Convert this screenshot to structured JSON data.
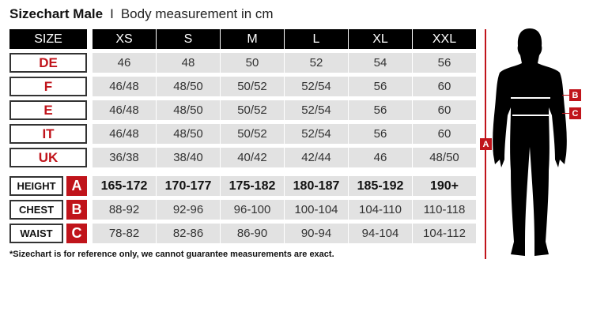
{
  "title": {
    "bold": "Sizechart Male",
    "separator": "I",
    "subtitle": "Body measurement in cm"
  },
  "header": {
    "size_label": "SIZE",
    "sizes": [
      "XS",
      "S",
      "M",
      "L",
      "XL",
      "XXL"
    ]
  },
  "size_rows": [
    {
      "label": "DE",
      "values": [
        "46",
        "48",
        "50",
        "52",
        "54",
        "56"
      ]
    },
    {
      "label": "F",
      "values": [
        "46/48",
        "48/50",
        "50/52",
        "52/54",
        "56",
        "60"
      ]
    },
    {
      "label": "E",
      "values": [
        "46/48",
        "48/50",
        "50/52",
        "52/54",
        "56",
        "60"
      ]
    },
    {
      "label": "IT",
      "values": [
        "46/48",
        "48/50",
        "50/52",
        "52/54",
        "56",
        "60"
      ]
    },
    {
      "label": "UK",
      "values": [
        "36/38",
        "38/40",
        "40/42",
        "42/44",
        "46",
        "48/50"
      ]
    }
  ],
  "measure_rows": [
    {
      "label": "HEIGHT",
      "badge": "A",
      "values": [
        "165-172",
        "170-177",
        "175-182",
        "180-187",
        "185-192",
        "190+"
      ]
    },
    {
      "label": "CHEST",
      "badge": "B",
      "values": [
        "88-92",
        "92-96",
        "96-100",
        "100-104",
        "104-110",
        "110-118"
      ]
    },
    {
      "label": "WAIST",
      "badge": "C",
      "values": [
        "78-82",
        "82-86",
        "86-90",
        "90-94",
        "94-104",
        "104-112"
      ]
    }
  ],
  "footnote": "*Sizechart is for reference only, we cannot guarantee measurements are exact.",
  "figure": {
    "height_marker": "A",
    "chest_marker": "B",
    "waist_marker": "C"
  },
  "colors": {
    "accent": "#c0141b",
    "header": "#000000",
    "cell": "#e2e2e2"
  }
}
